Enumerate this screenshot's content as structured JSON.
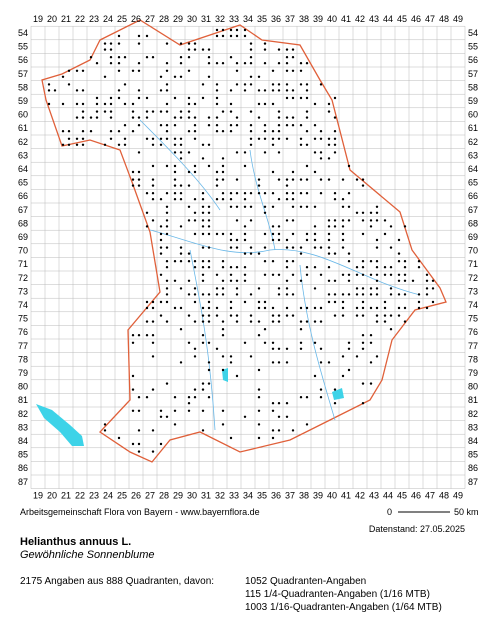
{
  "map": {
    "columns": [
      19,
      20,
      21,
      22,
      23,
      24,
      25,
      26,
      27,
      28,
      29,
      30,
      31,
      32,
      33,
      34,
      35,
      36,
      37,
      38,
      39,
      40,
      41,
      42,
      43,
      44,
      45,
      46,
      47,
      48,
      49
    ],
    "rows": [
      54,
      55,
      56,
      57,
      58,
      59,
      60,
      61,
      62,
      63,
      64,
      65,
      66,
      67,
      68,
      69,
      70,
      71,
      72,
      73,
      74,
      75,
      76,
      77,
      78,
      79,
      80,
      81,
      82,
      83,
      84,
      85,
      86,
      87
    ],
    "scale": {
      "start": "0",
      "end": "50 km"
    },
    "credit": "Arbeitsgemeinschaft Flora von Bayern - www.bayernflora.de",
    "date": "Datenstand: 27.05.2025"
  },
  "species": {
    "name": "Helianthus annuus L.",
    "common": "Gewöhnliche Sonnenblume"
  },
  "stats": {
    "summary": "2175 Angaben aus 888 Quadranten, davon:",
    "lines": [
      "1052 Quadranten-Angaben",
      "115 1/4-Quadranten-Angaben (1/16 MTB)",
      "1003 1/16-Quadranten-Angaben (1/64 MTB)"
    ]
  }
}
